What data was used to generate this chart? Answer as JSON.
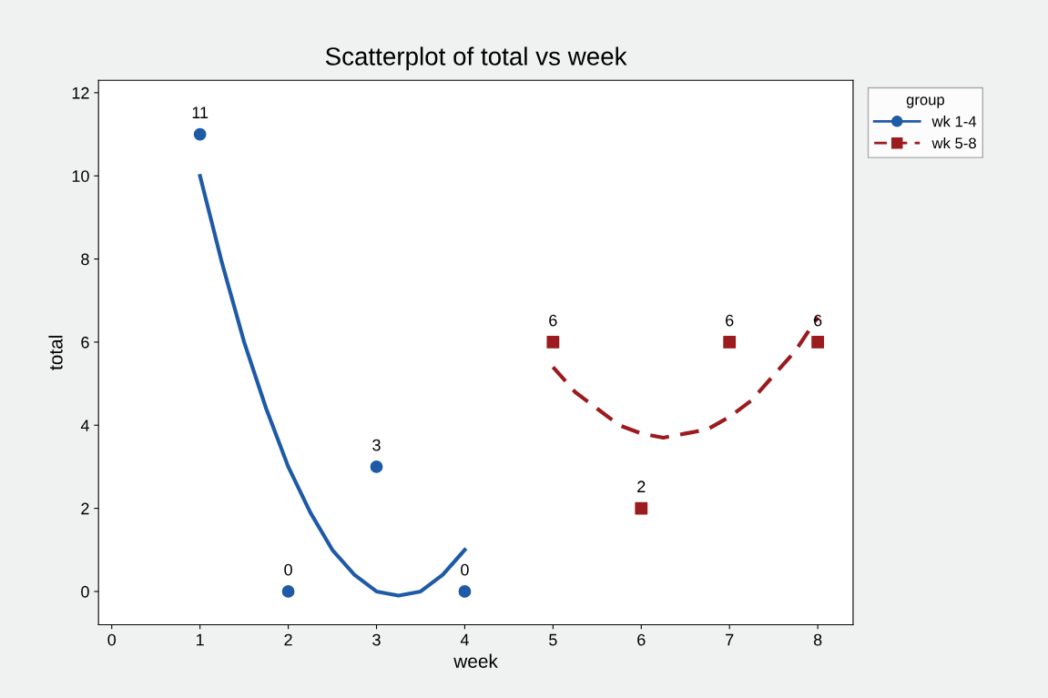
{
  "chart_data": {
    "type": "scatter",
    "title": "Scatterplot of total vs week",
    "xlabel": "week",
    "ylabel": "total",
    "legend_title": "group",
    "legend": "right",
    "grid": false,
    "xlim": [
      -0.15,
      8.4
    ],
    "xticks": [
      0,
      1,
      2,
      3,
      4,
      5,
      6,
      7,
      8
    ],
    "ylim": [
      -0.8,
      12.3
    ],
    "yticks": [
      0,
      2,
      4,
      6,
      8,
      10,
      12
    ],
    "series": [
      {
        "name": "wk 1-4",
        "color": "#1f5aa6",
        "marker": "circle",
        "data_labels": true,
        "x": [
          1,
          2,
          3,
          4
        ],
        "values": [
          11,
          0,
          3,
          0
        ]
      },
      {
        "name": "wk 5-8",
        "color": "#9b1b1f",
        "marker": "square",
        "data_labels": true,
        "x": [
          5,
          6,
          7,
          8
        ],
        "values": [
          6,
          2,
          6,
          6
        ]
      },
      {
        "type": "line",
        "color": "#1f5aa6",
        "line_style": "solid",
        "x": [
          1,
          1.25,
          1.5,
          1.75,
          2,
          2.25,
          2.5,
          2.75,
          3,
          3.25,
          3.5,
          3.75,
          4
        ],
        "values": [
          10,
          7.9,
          6,
          4.4,
          3,
          1.9,
          1,
          0.4,
          0,
          -0.1,
          0,
          0.4,
          1
        ]
      },
      {
        "type": "line",
        "color": "#9b1b1f",
        "line_style": "dashed",
        "x": [
          5,
          5.25,
          5.5,
          5.75,
          6,
          6.25,
          6.5,
          6.75,
          7,
          7.25,
          7.5,
          7.75,
          8
        ],
        "values": [
          5.4,
          4.8,
          4.4,
          4,
          3.8,
          3.7,
          3.8,
          3.9,
          4.2,
          4.6,
          5.2,
          5.8,
          6.6
        ]
      }
    ]
  }
}
